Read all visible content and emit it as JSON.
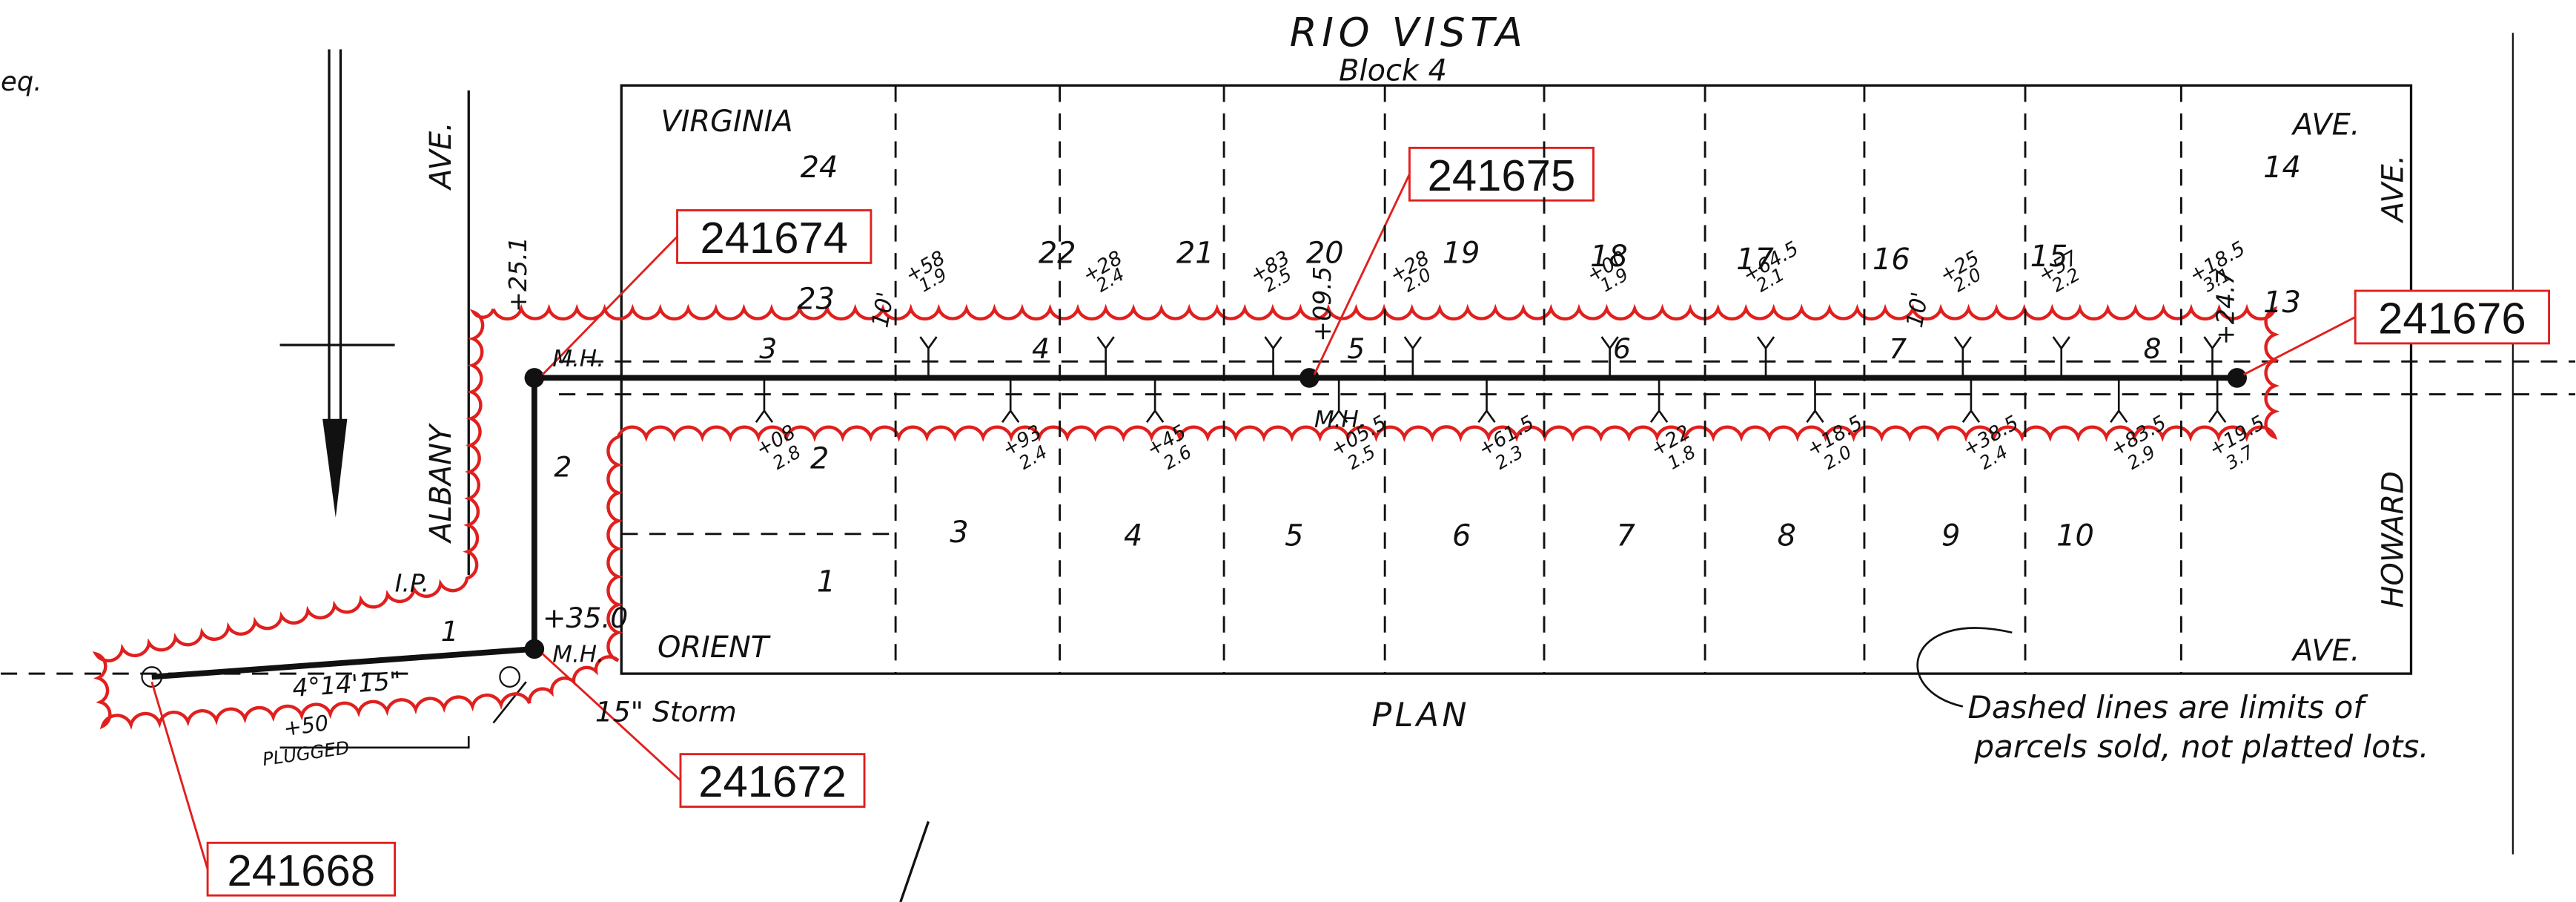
{
  "title": "RIO VISTA",
  "subtitle": "Block 4",
  "margin_fragment": "eq.",
  "streets": {
    "virginia": "VIRGINIA",
    "orient": "ORIENT",
    "albany": "ALBANY",
    "albany_ave": "AVE.",
    "howard": "HOWARD",
    "howard_ave": "AVE.",
    "top_ave": "AVE.",
    "bottom_ave": "AVE."
  },
  "plan_label": "PLAN",
  "note": [
    "Dashed lines are limits of",
    "parcels sold, not platted lots."
  ],
  "callouts": [
    "241674",
    "241675",
    "241676",
    "241672",
    "241668"
  ],
  "lots_north": [
    "24",
    "23",
    "22",
    "21",
    "20",
    "19",
    "18",
    "17",
    "16",
    "15",
    "14",
    "13"
  ],
  "lots_south": [
    "1",
    "2",
    "3",
    "4",
    "5",
    "6",
    "7",
    "8",
    "9",
    "10"
  ],
  "stations": [
    "1",
    "2",
    "3",
    "4",
    "5",
    "6",
    "7",
    "8"
  ],
  "manholes": [
    "M.H.",
    "M.H.",
    "M.H."
  ],
  "pipe_labels": [
    "+25.1",
    "+09.5",
    "+24.7",
    "+35.0"
  ],
  "offsets": [
    "10'",
    "10'"
  ],
  "laterals_north": [
    [
      "+58",
      "1.9"
    ],
    [
      "+28",
      "2.4"
    ],
    [
      "+83",
      "2.5"
    ],
    [
      "+28",
      "2.0"
    ],
    [
      "+00",
      "1.9"
    ],
    [
      "+64.5",
      "2.1"
    ],
    [
      "+25",
      "2.0"
    ],
    [
      "+57",
      "2.2"
    ],
    [
      "+18.5",
      "3.1"
    ]
  ],
  "laterals_south": [
    [
      "+08",
      "2.8"
    ],
    [
      "+93",
      "2.4"
    ],
    [
      "+45",
      "2.6"
    ],
    [
      "+05.5",
      "2.5"
    ],
    [
      "+61.5",
      "2.3"
    ],
    [
      "+22",
      "1.8"
    ],
    [
      "+18.5",
      "2.0"
    ],
    [
      "+38.5",
      "2.4"
    ],
    [
      "+83.5",
      "2.9"
    ],
    [
      "+19.5",
      "3.7"
    ]
  ],
  "angle": "4°14'15\"",
  "storm": "15\" Storm",
  "plugged": [
    "+50",
    "PLUGGED"
  ],
  "ip": "I.P."
}
